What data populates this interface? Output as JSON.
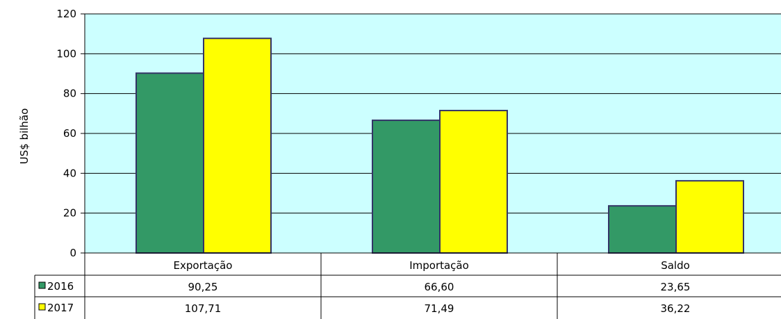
{
  "chart_data": {
    "type": "bar",
    "ylabel": "US$ bilhão",
    "xlabel": "",
    "title": "",
    "ylim": [
      0,
      120
    ],
    "yticks": [
      0,
      20,
      40,
      60,
      80,
      100,
      120
    ],
    "categories": [
      "Exportação",
      "Importação",
      "Saldo"
    ],
    "series": [
      {
        "name": "2016",
        "values": [
          90.25,
          66.6,
          23.65
        ],
        "labels": [
          "90,25",
          "66,60",
          "23,65"
        ],
        "color": "#339966"
      },
      {
        "name": "2017",
        "values": [
          107.71,
          71.49,
          36.22
        ],
        "labels": [
          "107,71",
          "71,49",
          "36,22"
        ],
        "color": "#ffff00"
      }
    ],
    "plot_background": "#ccffff",
    "grid": true,
    "legend": "data-table"
  }
}
